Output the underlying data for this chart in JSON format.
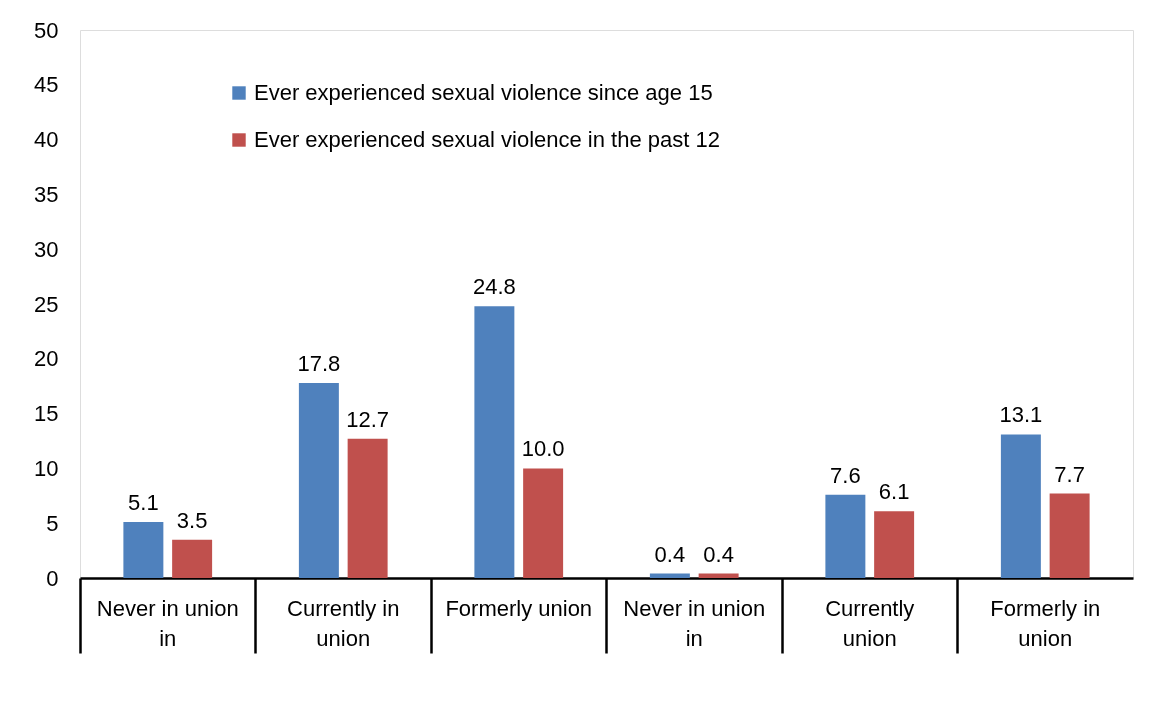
{
  "chart_data": {
    "type": "bar",
    "categories": [
      "Never in union in",
      "Currently in union",
      "Formerly union",
      "Never in union in",
      "Currently union",
      "Formerly in union"
    ],
    "series": [
      {
        "name": "Ever experienced sexual violence since age 15",
        "color": "#4f81bd",
        "values": [
          5.1,
          17.8,
          24.8,
          0.4,
          7.6,
          13.1
        ],
        "value_labels": [
          "5.1",
          "17.8",
          "24.8",
          "0.4",
          "7.6",
          "13.1"
        ]
      },
      {
        "name": "Ever experienced sexual violence in the past 12",
        "color": "#c0504d",
        "values": [
          3.5,
          12.7,
          10.0,
          0.4,
          6.1,
          7.7
        ],
        "value_labels": [
          "3.5",
          "12.7",
          "10.0",
          "0.4",
          "6.1",
          "7.7"
        ]
      }
    ],
    "ylim": [
      0,
      50
    ],
    "yticks": [
      0,
      5,
      10,
      15,
      20,
      25,
      30,
      35,
      40,
      45,
      50
    ],
    "grid": false,
    "legend": "top left"
  }
}
